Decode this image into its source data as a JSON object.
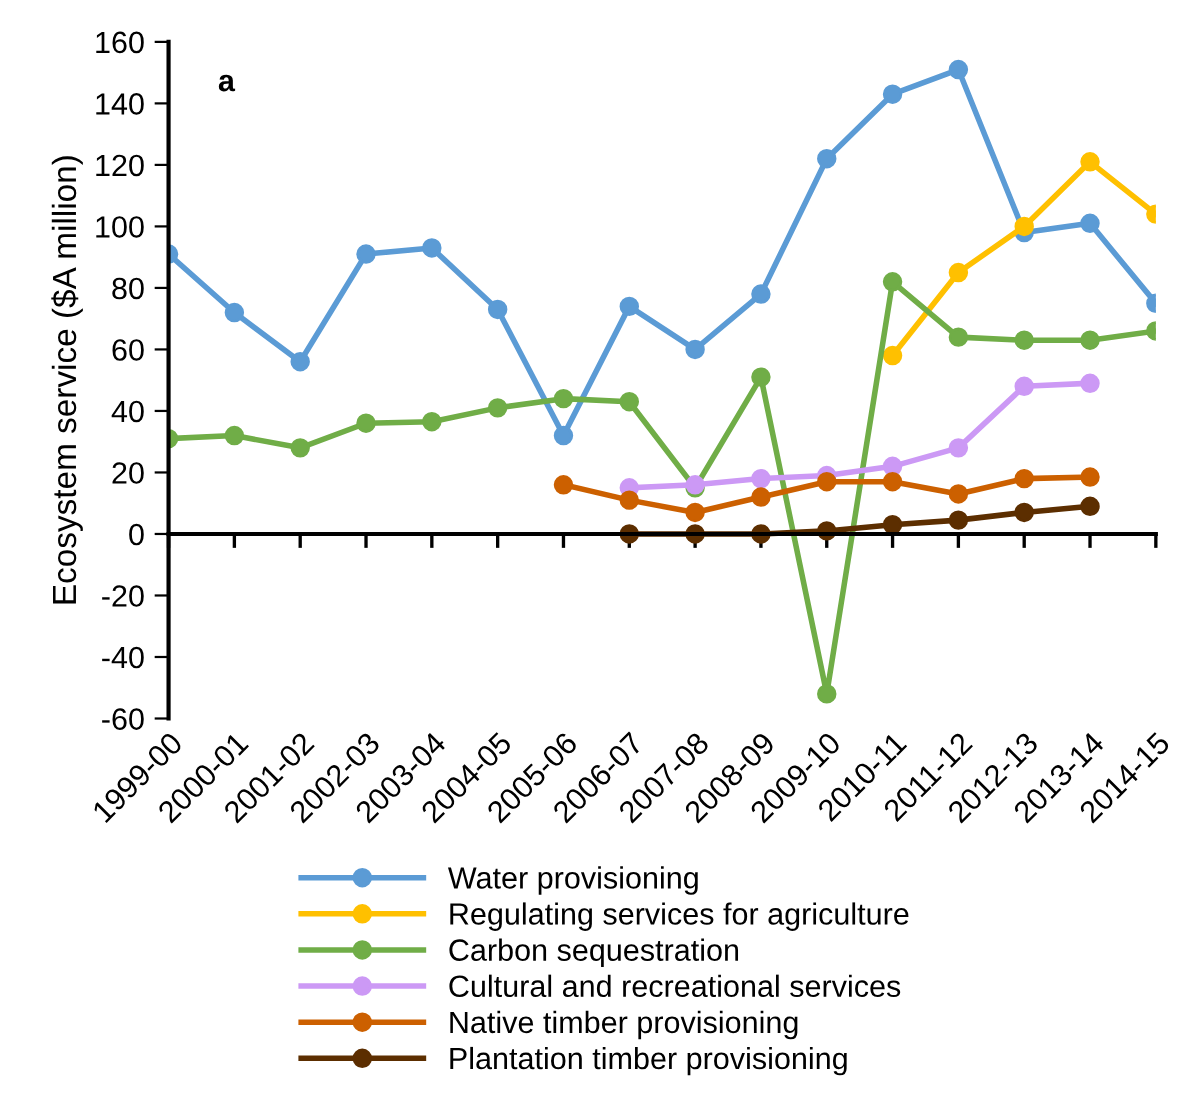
{
  "chart_data": {
    "type": "line",
    "ylabel": "Ecosystem service ($A million)",
    "annotations": [
      "a"
    ],
    "categories": [
      "1999-00",
      "2000-01",
      "2001-02",
      "2002-03",
      "2003-04",
      "2004-05",
      "2005-06",
      "2006-07",
      "2007-08",
      "2008-09",
      "2009-10",
      "2010-11",
      "2011-12",
      "2012-13",
      "2013-14",
      "2014-15"
    ],
    "series": [
      {
        "name": "Water provisioning",
        "color": "#5b9bd5",
        "values": [
          91,
          72,
          56,
          91,
          93,
          73,
          32,
          74,
          60,
          78,
          122,
          143,
          151,
          98,
          101,
          75
        ]
      },
      {
        "name": "Regulating services for agriculture",
        "color": "#ffc000",
        "values": [
          null,
          null,
          null,
          null,
          null,
          null,
          null,
          null,
          null,
          null,
          null,
          58,
          85,
          100,
          121,
          104
        ]
      },
      {
        "name": "Carbon sequestration",
        "color": "#70ad47",
        "values": [
          31,
          32,
          28,
          36,
          36.5,
          41,
          44,
          43,
          15,
          51,
          -52,
          82,
          64,
          63,
          63,
          66
        ]
      },
      {
        "name": "Cultural and recreational services",
        "color": "#cc99f5",
        "values": [
          null,
          null,
          null,
          null,
          null,
          null,
          null,
          15,
          16,
          18,
          19,
          22,
          28,
          48,
          49,
          null
        ]
      },
      {
        "name": "Native timber provisioning",
        "color": "#cc6000",
        "values": [
          null,
          null,
          null,
          null,
          null,
          null,
          16,
          11,
          7,
          12,
          17,
          17,
          13,
          18,
          18.5,
          null
        ]
      },
      {
        "name": "Plantation timber provisioning",
        "color": "#5c2e00",
        "values": [
          null,
          null,
          null,
          null,
          null,
          null,
          null,
          0,
          0,
          0,
          1,
          3,
          4.5,
          7,
          9,
          null
        ]
      }
    ],
    "ylim": [
      -60,
      160
    ],
    "yticks": [
      -60,
      -40,
      -20,
      0,
      20,
      40,
      60,
      80,
      100,
      120,
      140,
      160
    ],
    "legend": "bottom",
    "marker": "circle",
    "line_style": "solid"
  }
}
